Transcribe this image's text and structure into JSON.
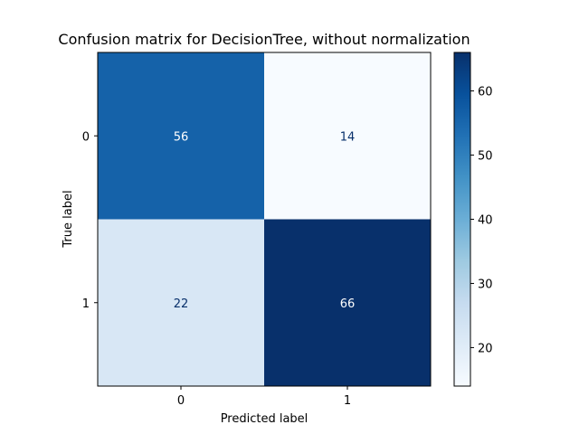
{
  "chart_data": {
    "type": "heatmap",
    "title": "Confusion matrix for DecisionTree, without normalization",
    "xlabel": "Predicted label",
    "ylabel": "True label",
    "x_categories": [
      "0",
      "1"
    ],
    "y_categories": [
      "0",
      "1"
    ],
    "values": [
      [
        56,
        14
      ],
      [
        22,
        66
      ]
    ],
    "colormap": "Blues",
    "colorbar": {
      "range": [
        14,
        66
      ],
      "ticks": [
        20,
        30,
        40,
        50,
        60
      ]
    },
    "text_colors": {
      "dark_cell": "#ffffff",
      "light_cell": "#08306b"
    }
  }
}
